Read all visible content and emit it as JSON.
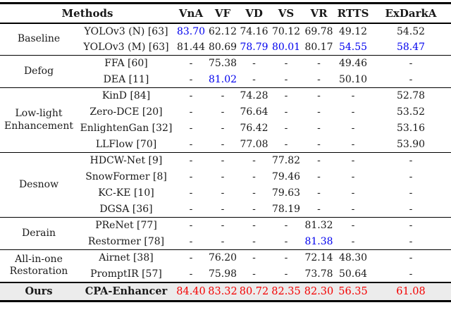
{
  "colors": {
    "best_blue": "#0000EE",
    "ours_red": "#F40000",
    "ours_row_bg": "#ECECEC",
    "rule": "#000000"
  },
  "table": {
    "methods_header": "Methods",
    "columns": [
      "VnA",
      "VF",
      "VD",
      "VS",
      "VR",
      "RTTS",
      "ExDarkA"
    ],
    "groups": [
      {
        "category": "Baseline",
        "rows": [
          {
            "method": "YOLOv3 (N) [63]",
            "values": [
              "83.70",
              "62.12",
              "74.16",
              "70.12",
              "69.78",
              "49.12",
              "54.52"
            ]
          },
          {
            "method": "YOLOv3 (M) [63]",
            "values": [
              "81.44",
              "80.69",
              "78.79",
              "80.01",
              "80.17",
              "54.55",
              "58.47"
            ]
          }
        ]
      },
      {
        "category": "Defog",
        "rows": [
          {
            "method": "FFA [60]",
            "values": [
              "-",
              "75.38",
              "-",
              "-",
              "-",
              "49.46",
              "-"
            ]
          },
          {
            "method": "DEA [11]",
            "values": [
              "-",
              "81.02",
              "-",
              "-",
              "-",
              "50.10",
              "-"
            ]
          }
        ]
      },
      {
        "category": "Low-light Enhancement",
        "rows": [
          {
            "method": "KinD [84]",
            "values": [
              "-",
              "-",
              "74.28",
              "-",
              "-",
              "-",
              "52.78"
            ]
          },
          {
            "method": "Zero-DCE [20]",
            "values": [
              "-",
              "-",
              "76.64",
              "-",
              "-",
              "-",
              "53.52"
            ]
          },
          {
            "method": "EnlightenGan [32]",
            "values": [
              "-",
              "-",
              "76.42",
              "-",
              "-",
              "-",
              "53.16"
            ]
          },
          {
            "method": "LLFlow [70]",
            "values": [
              "-",
              "-",
              "77.08",
              "-",
              "-",
              "-",
              "53.90"
            ]
          }
        ]
      },
      {
        "category": "Desnow",
        "rows": [
          {
            "method": "HDCW-Net [9]",
            "values": [
              "-",
              "-",
              "-",
              "77.82",
              "-",
              "-",
              "-"
            ]
          },
          {
            "method": "SnowFormer [8]",
            "values": [
              "-",
              "-",
              "-",
              "79.46",
              "-",
              "-",
              "-"
            ]
          },
          {
            "method": "KC-KE [10]",
            "values": [
              "-",
              "-",
              "-",
              "79.63",
              "-",
              "-",
              "-"
            ]
          },
          {
            "method": "DGSA [36]",
            "values": [
              "-",
              "-",
              "-",
              "78.19",
              "-",
              "-",
              "-"
            ]
          }
        ]
      },
      {
        "category": "Derain",
        "rows": [
          {
            "method": "PReNet [77]",
            "values": [
              "-",
              "-",
              "-",
              "-",
              "81.32",
              "-",
              "-"
            ]
          },
          {
            "method": "Restormer [78]",
            "values": [
              "-",
              "-",
              "-",
              "-",
              "81.38",
              "-",
              "-"
            ]
          }
        ]
      },
      {
        "category": "All-in-one Restoration",
        "rows": [
          {
            "method": "Airnet [38]",
            "values": [
              "-",
              "76.20",
              "-",
              "-",
              "72.14",
              "48.30",
              "-"
            ]
          },
          {
            "method": "PromptIR [57]",
            "values": [
              "-",
              "75.98",
              "-",
              "-",
              "73.78",
              "50.64",
              "-"
            ]
          }
        ]
      },
      {
        "category": "Ours",
        "rows": [
          {
            "method": "CPA-Enhancer",
            "values": [
              "84.40",
              "83.32",
              "80.72",
              "82.35",
              "82.30",
              "56.35",
              "61.08"
            ]
          }
        ]
      }
    ],
    "highlights": {
      "blue_cells": [
        "0.0.0",
        "0.1.2",
        "0.1.3",
        "0.1.5",
        "0.1.6",
        "1.1.1",
        "4.1.4"
      ],
      "red_cells": [
        "6.0.0",
        "6.0.1",
        "6.0.2",
        "6.0.3",
        "6.0.4",
        "6.0.5",
        "6.0.6"
      ]
    }
  }
}
